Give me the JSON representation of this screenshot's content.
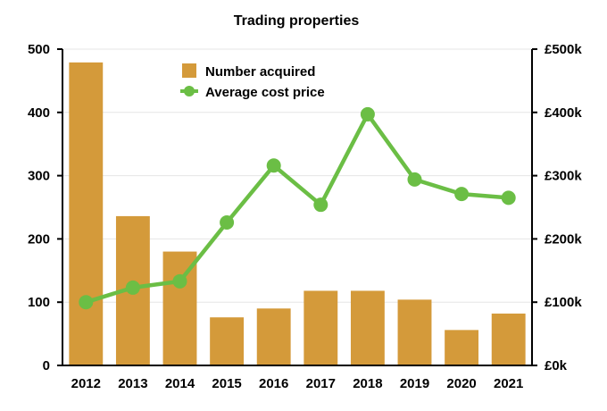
{
  "chart_data": {
    "type": "bar",
    "title": "Trading properties",
    "categories": [
      "2012",
      "2013",
      "2014",
      "2015",
      "2016",
      "2017",
      "2018",
      "2019",
      "2020",
      "2021"
    ],
    "series": [
      {
        "name": "Number acquired",
        "type": "bar",
        "axis": "left",
        "color": "#D49A3A",
        "values": [
          479,
          236,
          180,
          76,
          90,
          118,
          118,
          104,
          56,
          82
        ]
      },
      {
        "name": "Average cost price",
        "type": "line",
        "axis": "right",
        "color": "#6BBE45",
        "values": [
          100000,
          123000,
          133000,
          226000,
          316000,
          254000,
          397000,
          294000,
          271000,
          265000
        ]
      }
    ],
    "y_left": {
      "lim": [
        0,
        500
      ],
      "ticks": [
        0,
        100,
        200,
        300,
        400,
        500
      ],
      "tick_labels": [
        "0",
        "100",
        "200",
        "300",
        "400",
        "500"
      ]
    },
    "y_right": {
      "lim": [
        0,
        500000
      ],
      "ticks": [
        0,
        100000,
        200000,
        300000,
        400000,
        500000
      ],
      "tick_labels": [
        "£0k",
        "£100k",
        "£200k",
        "£300k",
        "£400k",
        "£500k"
      ]
    },
    "grid": true,
    "legend": {
      "position": "top-center"
    }
  }
}
